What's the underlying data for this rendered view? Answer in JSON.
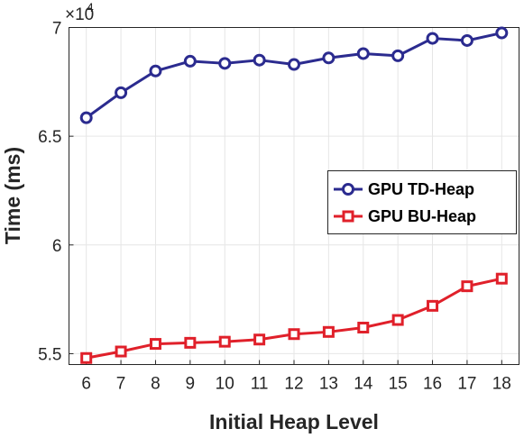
{
  "chart_data": {
    "type": "line",
    "xlabel": "Initial Heap Level",
    "ylabel": "Time (ms)",
    "exponent_base": "×10",
    "exponent_power": "4",
    "x": [
      6,
      7,
      8,
      9,
      10,
      11,
      12,
      13,
      14,
      15,
      16,
      17,
      18
    ],
    "xlim": [
      5.5,
      18.5
    ],
    "ylim": [
      54500,
      70000
    ],
    "yticks": [
      55000,
      60000,
      65000,
      70000
    ],
    "ytick_labels": [
      "5.5",
      "6",
      "6.5",
      "7"
    ],
    "grid": true,
    "legend_position": "center-right",
    "series": [
      {
        "name": "GPU TD-Heap",
        "marker": "circle",
        "color": "#2b2b8f",
        "values": [
          65850,
          67000,
          68000,
          68450,
          68350,
          68500,
          68300,
          68600,
          68800,
          68700,
          69500,
          69400,
          69750
        ]
      },
      {
        "name": "GPU BU-Heap",
        "marker": "square",
        "color": "#e0202a",
        "values": [
          54800,
          55100,
          55450,
          55500,
          55550,
          55650,
          55900,
          56000,
          56200,
          56550,
          57200,
          58100,
          58450
        ]
      }
    ]
  }
}
